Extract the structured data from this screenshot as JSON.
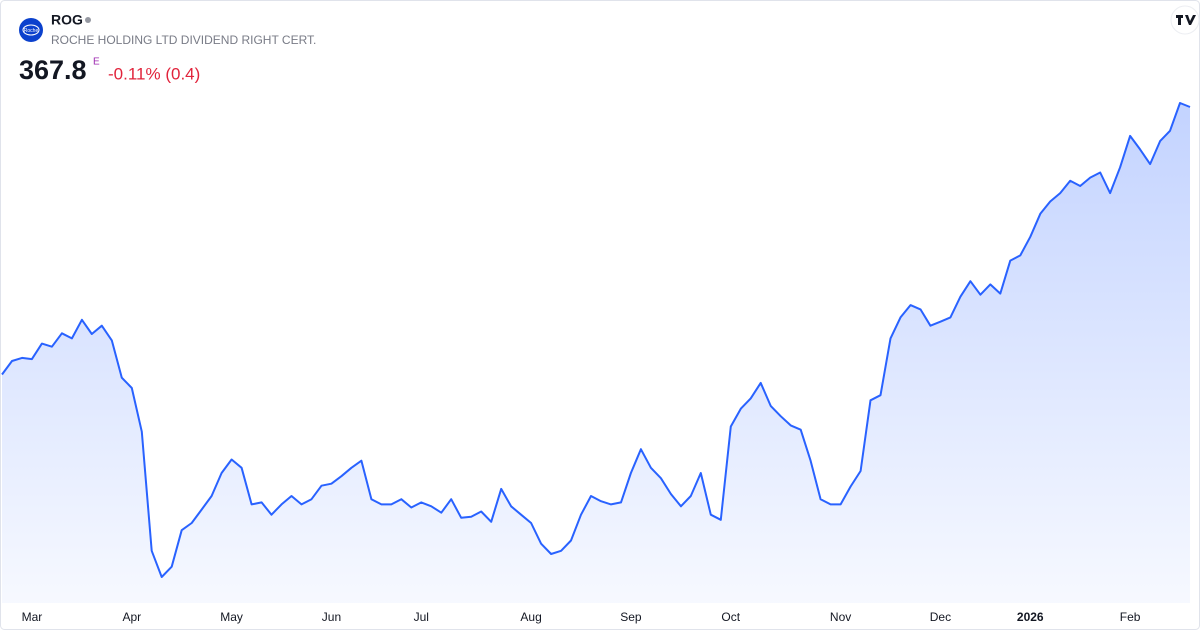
{
  "header": {
    "symbol": "ROG",
    "logo_text": "Roche",
    "name": "ROCHE HOLDING LTD DIVIDEND RIGHT CERT.",
    "price": "367.8",
    "price_flag": "E",
    "change": "-0.11% (0.4)"
  },
  "chart_data": {
    "type": "area",
    "color": "#2962ff",
    "values": [
      300.4,
      303.8,
      304.6,
      304.3,
      308.2,
      307.4,
      310.8,
      309.5,
      314.2,
      310.6,
      312.7,
      309.0,
      299.6,
      297.0,
      286.0,
      256.0,
      249.4,
      252.0,
      261.2,
      263.0,
      266.4,
      269.8,
      275.6,
      279.0,
      276.9,
      267.7,
      268.2,
      265.1,
      267.7,
      269.8,
      267.7,
      269.0,
      272.4,
      272.9,
      274.8,
      276.9,
      278.7,
      269.0,
      267.7,
      267.7,
      269.0,
      266.9,
      268.2,
      267.2,
      265.6,
      269.0,
      264.3,
      264.6,
      265.9,
      263.3,
      271.6,
      267.2,
      265.1,
      263.0,
      257.8,
      255.2,
      256.0,
      258.6,
      265.1,
      269.8,
      268.5,
      267.7,
      268.2,
      275.6,
      281.6,
      276.9,
      274.3,
      270.3,
      267.2,
      269.8,
      275.6,
      265.1,
      263.8,
      287.3,
      291.8,
      294.4,
      298.3,
      292.5,
      289.9,
      287.6,
      286.5,
      278.7,
      269.0,
      267.7,
      267.7,
      272.2,
      276.1,
      293.9,
      295.2,
      309.5,
      314.8,
      317.9,
      316.8,
      312.7,
      313.7,
      314.8,
      320.0,
      323.9,
      320.5,
      323.1,
      320.8,
      329.1,
      330.4,
      335.1,
      340.9,
      344.0,
      346.1,
      349.2,
      347.9,
      350.0,
      351.3,
      346.1,
      352.6,
      360.5,
      357.1,
      353.4,
      359.2,
      361.8,
      368.8,
      367.8
    ],
    "xticks": [
      {
        "value": 3,
        "label": "Mar"
      },
      {
        "value": 13,
        "label": "Apr"
      },
      {
        "value": 23,
        "label": "May"
      },
      {
        "value": 33,
        "label": "Jun"
      },
      {
        "value": 42,
        "label": "Jul"
      },
      {
        "value": 53,
        "label": "Aug"
      },
      {
        "value": 63,
        "label": "Sep"
      },
      {
        "value": 73,
        "label": "Oct"
      },
      {
        "value": 84,
        "label": "Nov"
      },
      {
        "value": 94,
        "label": "Dec"
      },
      {
        "value": 103,
        "label": "2026"
      },
      {
        "value": 113,
        "label": "Feb"
      }
    ]
  }
}
